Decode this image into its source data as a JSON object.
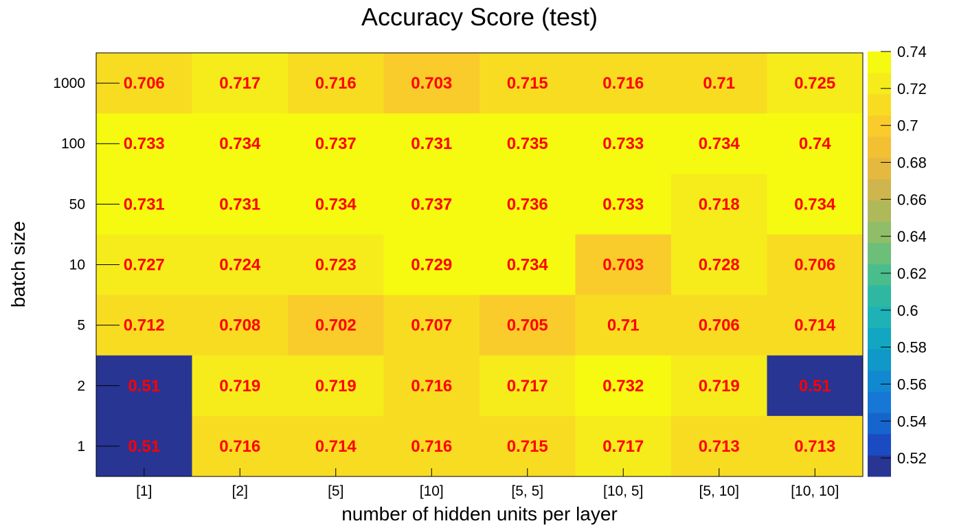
{
  "chart_data": {
    "type": "heatmap",
    "title": "Accuracy Score (test)",
    "xlabel": "number of hidden units per layer",
    "ylabel": "batch size",
    "x_categories": [
      "[1]",
      "[2]",
      "[5]",
      "[10]",
      "[5, 5]",
      "[10, 5]",
      "[5, 10]",
      "[10, 10]"
    ],
    "y_categories": [
      "1000",
      "100",
      "50",
      "10",
      "5",
      "2",
      "1"
    ],
    "values": [
      [
        0.706,
        0.717,
        0.716,
        0.703,
        0.715,
        0.716,
        0.71,
        0.725
      ],
      [
        0.733,
        0.734,
        0.737,
        0.731,
        0.735,
        0.733,
        0.734,
        0.74
      ],
      [
        0.731,
        0.731,
        0.734,
        0.737,
        0.736,
        0.733,
        0.718,
        0.734
      ],
      [
        0.727,
        0.724,
        0.723,
        0.729,
        0.734,
        0.703,
        0.728,
        0.706
      ],
      [
        0.712,
        0.708,
        0.702,
        0.707,
        0.705,
        0.71,
        0.706,
        0.714
      ],
      [
        0.51,
        0.719,
        0.719,
        0.716,
        0.717,
        0.732,
        0.719,
        0.51
      ],
      [
        0.51,
        0.716,
        0.714,
        0.716,
        0.715,
        0.717,
        0.713,
        0.713
      ]
    ],
    "labels": [
      [
        "0.706",
        "0.717",
        "0.716",
        "0.703",
        "0.715",
        "0.716",
        "0.71",
        "0.725"
      ],
      [
        "0.733",
        "0.734",
        "0.737",
        "0.731",
        "0.735",
        "0.733",
        "0.734",
        "0.74"
      ],
      [
        "0.731",
        "0.731",
        "0.734",
        "0.737",
        "0.736",
        "0.733",
        "0.718",
        "0.734"
      ],
      [
        "0.727",
        "0.724",
        "0.723",
        "0.729",
        "0.734",
        "0.703",
        "0.728",
        "0.706"
      ],
      [
        "0.712",
        "0.708",
        "0.702",
        "0.707",
        "0.705",
        "0.71",
        "0.706",
        "0.714"
      ],
      [
        "0.51",
        "0.719",
        "0.719",
        "0.716",
        "0.717",
        "0.732",
        "0.719",
        "0.51"
      ],
      [
        "0.51",
        "0.716",
        "0.714",
        "0.716",
        "0.715",
        "0.717",
        "0.713",
        "0.713"
      ]
    ],
    "zlim": [
      0.51,
      0.74
    ],
    "colorbar_ticks": [
      "0.52",
      "0.54",
      "0.56",
      "0.58",
      "0.6",
      "0.62",
      "0.64",
      "0.66",
      "0.68",
      "0.7",
      "0.72",
      "0.74"
    ],
    "colorbar_tick_values": [
      0.52,
      0.54,
      0.56,
      0.58,
      0.6,
      0.62,
      0.64,
      0.66,
      0.68,
      0.7,
      0.72,
      0.74
    ],
    "colorbar_levels": 20,
    "colorbar_colors": [
      "#283593",
      "#1a4bc2",
      "#1565cc",
      "#1678d4",
      "#1288d0",
      "#0f98c8",
      "#12a6c2",
      "#1eb1b5",
      "#2eb8a2",
      "#4abd8d",
      "#6cbf79",
      "#90be68",
      "#b0b95a",
      "#ceb54e",
      "#e5b83f",
      "#f3bf33",
      "#f9cc2b",
      "#f8dc22",
      "#f6ec1b",
      "#f5fa10"
    ],
    "label_color": "#ff0000",
    "legend": "right"
  }
}
